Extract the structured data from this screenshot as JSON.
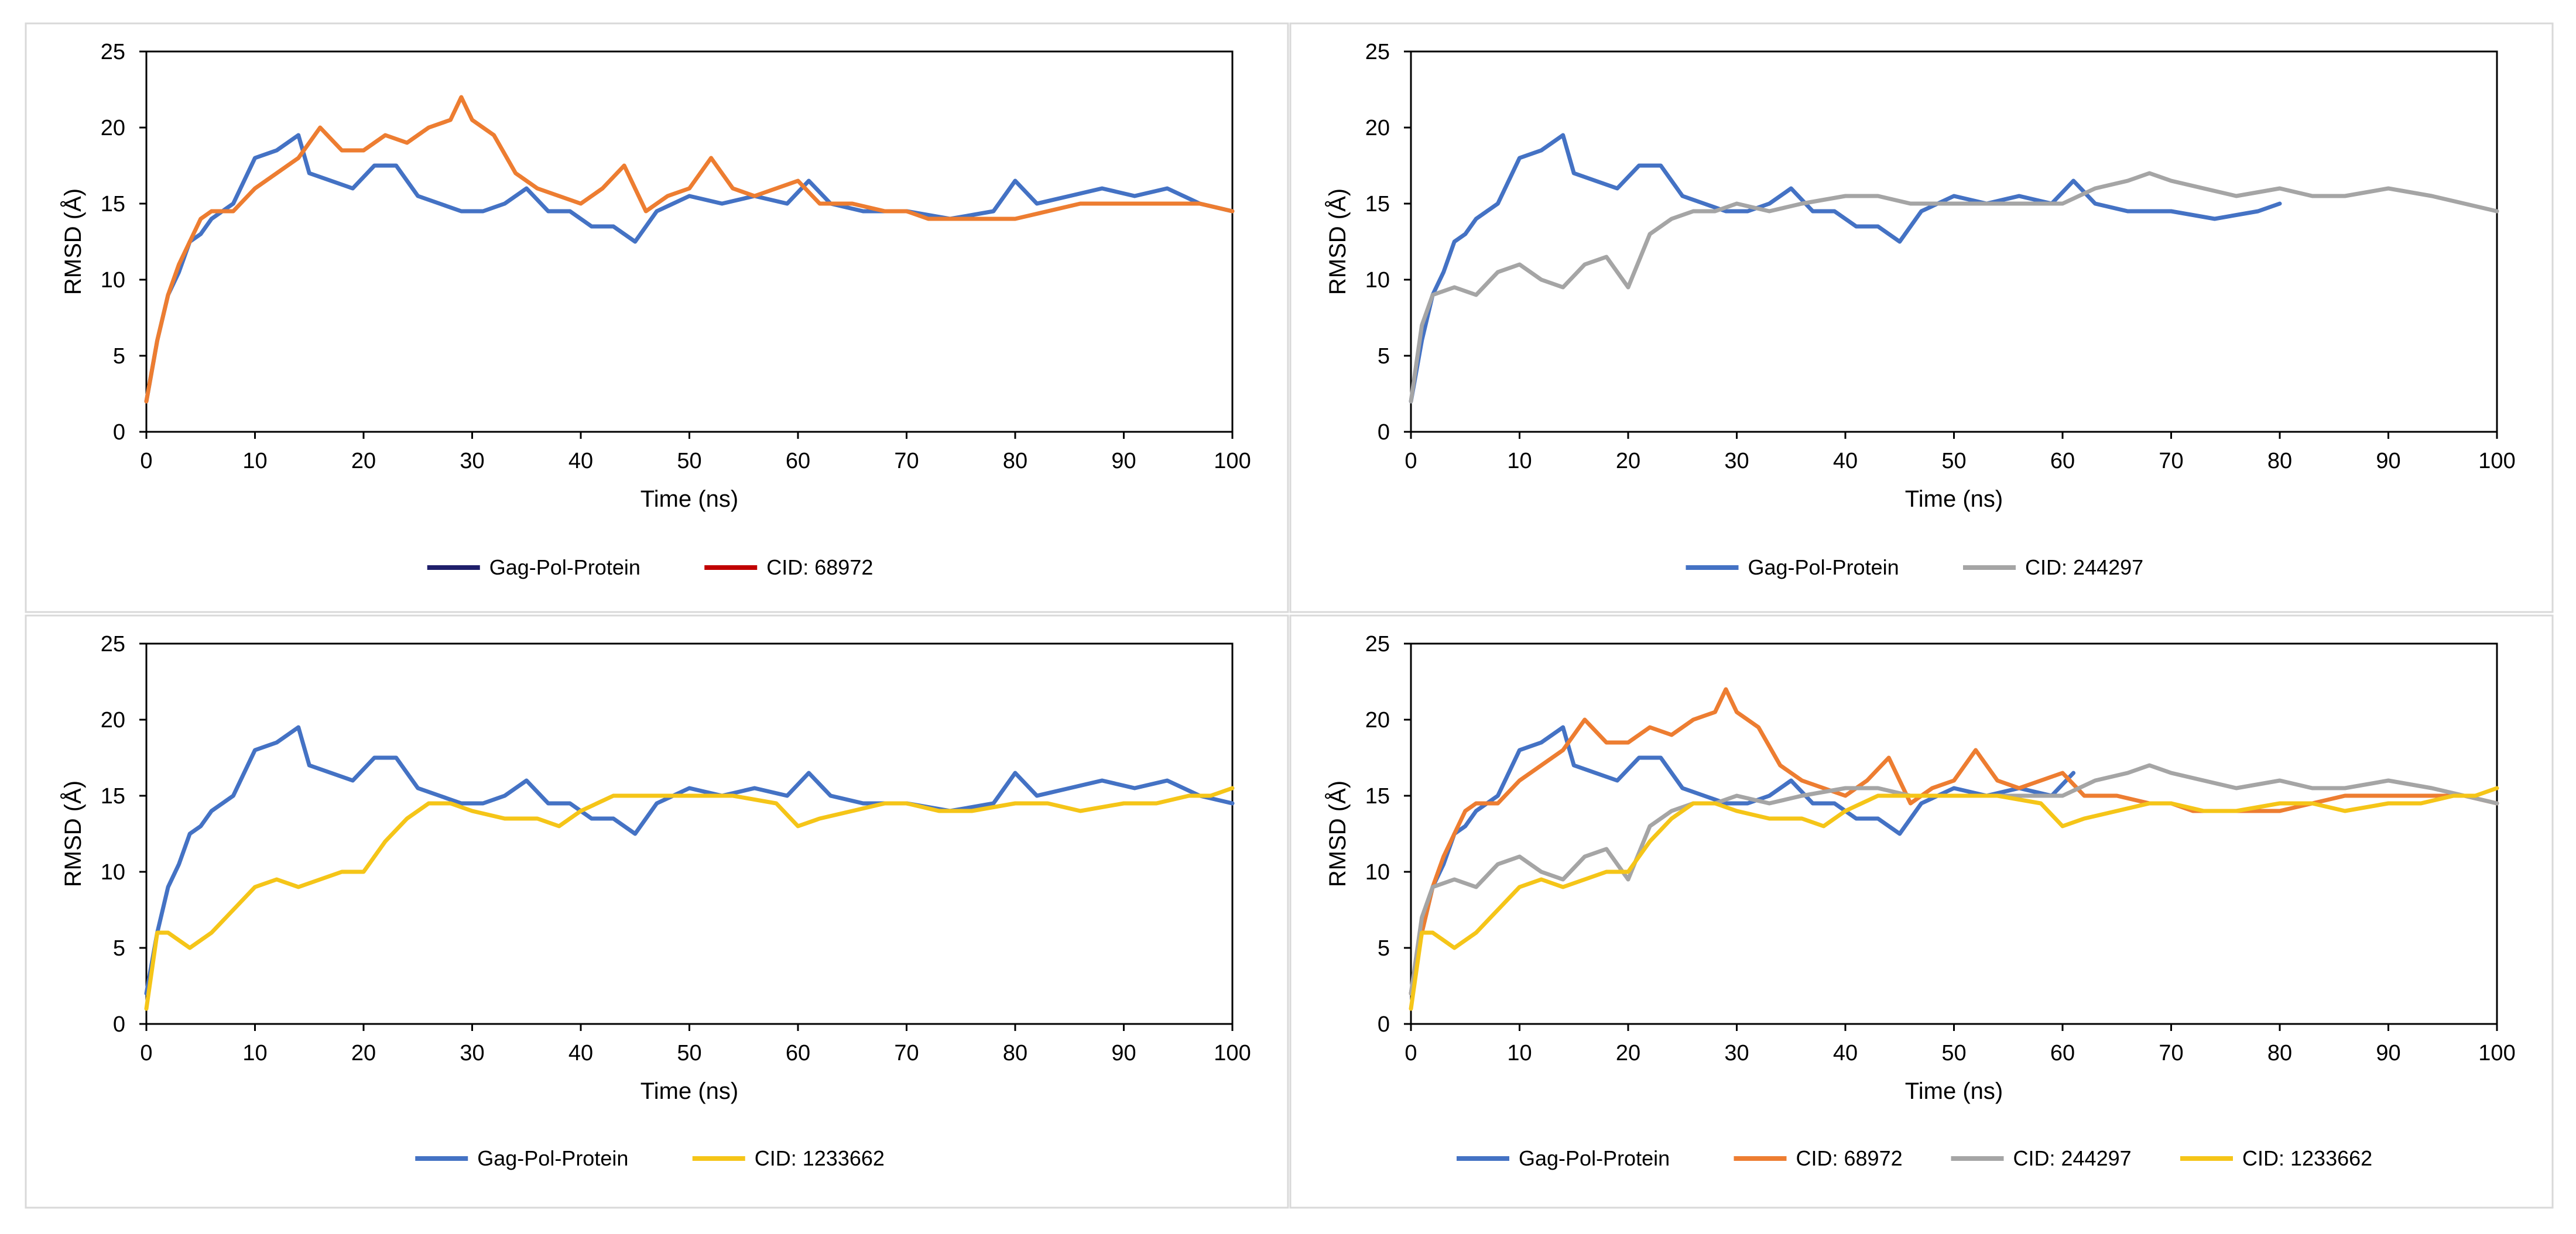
{
  "chart_data": [
    {
      "type": "line",
      "xlabel": "Time (ns)",
      "ylabel": "RMSD (Å)",
      "xlim": [
        0,
        100
      ],
      "ylim": [
        0,
        25
      ],
      "xticks": [
        "0",
        "10",
        "20",
        "30",
        "40",
        "50",
        "60",
        "70",
        "80",
        "90",
        "100"
      ],
      "yticks": [
        "0",
        "5",
        "10",
        "15",
        "20",
        "25"
      ],
      "legend": "bottom-center",
      "series": [
        {
          "name": "Gag-Pol-Protein",
          "color": "#4472c4",
          "legend_color": "#1f1f6b",
          "x": [
            0,
            1,
            2,
            3,
            4,
            5,
            6,
            8,
            10,
            12,
            14,
            15,
            17,
            19,
            21,
            23,
            25,
            27,
            29,
            31,
            33,
            35,
            37,
            39,
            41,
            43,
            45,
            47,
            50,
            53,
            56,
            59,
            61,
            63,
            66,
            70,
            74,
            78,
            80,
            82,
            85,
            88,
            91,
            94,
            97,
            100
          ],
          "y": [
            2,
            6,
            9,
            10.5,
            12.5,
            13,
            14,
            15,
            18,
            18.5,
            19.5,
            17,
            16.5,
            16,
            17.5,
            17.5,
            15.5,
            15,
            14.5,
            14.5,
            15,
            16,
            14.5,
            14.5,
            13.5,
            13.5,
            12.5,
            14.5,
            15.5,
            15,
            15.5,
            15,
            16.5,
            15,
            14.5,
            14.5,
            14,
            14.5,
            16.5,
            15,
            15.5,
            16,
            15.5,
            16,
            15,
            14.5
          ]
        },
        {
          "name": "CID: 68972",
          "color": "#ed7d31",
          "legend_color": "#c00000",
          "x": [
            0,
            1,
            2,
            3,
            4,
            5,
            6,
            8,
            10,
            12,
            14,
            16,
            18,
            20,
            22,
            24,
            26,
            28,
            29,
            30,
            32,
            34,
            36,
            38,
            40,
            42,
            44,
            46,
            48,
            50,
            52,
            54,
            56,
            58,
            60,
            62,
            65,
            68,
            70,
            72,
            75,
            78,
            80,
            83,
            86,
            90,
            94,
            97,
            100
          ],
          "y": [
            2,
            6,
            9,
            11,
            12.5,
            14,
            14.5,
            14.5,
            16,
            17,
            18,
            20,
            18.5,
            18.5,
            19.5,
            19,
            20,
            20.5,
            22,
            20.5,
            19.5,
            17,
            16,
            15.5,
            15,
            16,
            17.5,
            14.5,
            15.5,
            16,
            18,
            16,
            15.5,
            16,
            16.5,
            15,
            15,
            14.5,
            14.5,
            14,
            14,
            14,
            14,
            14.5,
            15,
            15,
            15,
            15,
            14.5
          ]
        }
      ]
    },
    {
      "type": "line",
      "xlabel": "Time (ns)",
      "ylabel": "RMSD (Å)",
      "xlim": [
        0,
        100
      ],
      "ylim": [
        0,
        25
      ],
      "xticks": [
        "0",
        "10",
        "20",
        "30",
        "40",
        "50",
        "60",
        "70",
        "80",
        "90",
        "100"
      ],
      "yticks": [
        "0",
        "5",
        "10",
        "15",
        "20",
        "25"
      ],
      "legend": "bottom-center",
      "series": [
        {
          "name": "Gag-Pol-Protein",
          "color": "#4472c4",
          "legend_color": "#4472c4",
          "x": [
            0,
            1,
            2,
            3,
            4,
            5,
            6,
            8,
            10,
            12,
            14,
            15,
            17,
            19,
            21,
            23,
            25,
            27,
            29,
            31,
            33,
            35,
            37,
            39,
            41,
            43,
            45,
            47,
            50,
            53,
            56,
            59,
            61,
            63,
            66,
            70,
            74,
            78,
            80
          ],
          "y": [
            2,
            6,
            9,
            10.5,
            12.5,
            13,
            14,
            15,
            18,
            18.5,
            19.5,
            17,
            16.5,
            16,
            17.5,
            17.5,
            15.5,
            15,
            14.5,
            14.5,
            15,
            16,
            14.5,
            14.5,
            13.5,
            13.5,
            12.5,
            14.5,
            15.5,
            15,
            15.5,
            15,
            16.5,
            15,
            14.5,
            14.5,
            14,
            14.5,
            15
          ]
        },
        {
          "name": "CID: 244297",
          "color": "#a5a5a5",
          "legend_color": "#a5a5a5",
          "x": [
            0,
            1,
            2,
            4,
            6,
            8,
            10,
            12,
            14,
            16,
            18,
            20,
            22,
            24,
            26,
            28,
            30,
            33,
            36,
            40,
            43,
            46,
            50,
            55,
            60,
            63,
            66,
            68,
            70,
            73,
            76,
            80,
            83,
            86,
            90,
            94,
            97,
            100
          ],
          "y": [
            2,
            7,
            9,
            9.5,
            9,
            10.5,
            11,
            10,
            9.5,
            11,
            11.5,
            9.5,
            13,
            14,
            14.5,
            14.5,
            15,
            14.5,
            15,
            15.5,
            15.5,
            15,
            15,
            15,
            15,
            16,
            16.5,
            17,
            16.5,
            16,
            15.5,
            16,
            15.5,
            15.5,
            16,
            15.5,
            15,
            14.5
          ]
        }
      ]
    },
    {
      "type": "line",
      "xlabel": "Time (ns)",
      "ylabel": "RMSD (Å)",
      "xlim": [
        0,
        100
      ],
      "ylim": [
        0,
        25
      ],
      "xticks": [
        "0",
        "10",
        "20",
        "30",
        "40",
        "50",
        "60",
        "70",
        "80",
        "90",
        "100"
      ],
      "yticks": [
        "0",
        "5",
        "10",
        "15",
        "20",
        "25"
      ],
      "legend": "bottom-center",
      "series": [
        {
          "name": "Gag-Pol-Protein",
          "color": "#4472c4",
          "legend_color": "#4472c4",
          "x": [
            0,
            1,
            2,
            3,
            4,
            5,
            6,
            8,
            10,
            12,
            14,
            15,
            17,
            19,
            21,
            23,
            25,
            27,
            29,
            31,
            33,
            35,
            37,
            39,
            41,
            43,
            45,
            47,
            50,
            53,
            56,
            59,
            61,
            63,
            66,
            70,
            74,
            78,
            80,
            82,
            85,
            88,
            91,
            94,
            97,
            100
          ],
          "y": [
            2,
            6,
            9,
            10.5,
            12.5,
            13,
            14,
            15,
            18,
            18.5,
            19.5,
            17,
            16.5,
            16,
            17.5,
            17.5,
            15.5,
            15,
            14.5,
            14.5,
            15,
            16,
            14.5,
            14.5,
            13.5,
            13.5,
            12.5,
            14.5,
            15.5,
            15,
            15.5,
            15,
            16.5,
            15,
            14.5,
            14.5,
            14,
            14.5,
            16.5,
            15,
            15.5,
            16,
            15.5,
            16,
            15,
            14.5
          ]
        },
        {
          "name": "CID: 1233662",
          "color": "#f5c518",
          "legend_color": "#f5c518",
          "x": [
            0,
            1,
            2,
            3,
            4,
            6,
            8,
            10,
            12,
            14,
            16,
            18,
            20,
            22,
            24,
            26,
            28,
            30,
            33,
            36,
            38,
            40,
            43,
            46,
            50,
            54,
            58,
            60,
            62,
            65,
            68,
            70,
            73,
            76,
            80,
            83,
            86,
            90,
            93,
            96,
            98,
            100
          ],
          "y": [
            1,
            6,
            6,
            5.5,
            5,
            6,
            7.5,
            9,
            9.5,
            9,
            9.5,
            10,
            10,
            12,
            13.5,
            14.5,
            14.5,
            14,
            13.5,
            13.5,
            13,
            14,
            15,
            15,
            15,
            15,
            14.5,
            13,
            13.5,
            14,
            14.5,
            14.5,
            14,
            14,
            14.5,
            14.5,
            14,
            14.5,
            14.5,
            15,
            15,
            15.5
          ]
        }
      ]
    },
    {
      "type": "line",
      "xlabel": "Time (ns)",
      "ylabel": "RMSD (Å)",
      "xlim": [
        0,
        100
      ],
      "ylim": [
        0,
        25
      ],
      "xticks": [
        "0",
        "10",
        "20",
        "30",
        "40",
        "50",
        "60",
        "70",
        "80",
        "90",
        "100"
      ],
      "yticks": [
        "0",
        "5",
        "10",
        "15",
        "20",
        "25"
      ],
      "legend": "bottom-center",
      "series": [
        {
          "name": "Gag-Pol-Protein",
          "color": "#4472c4",
          "legend_color": "#4472c4",
          "x": [
            0,
            1,
            2,
            3,
            4,
            5,
            6,
            8,
            10,
            12,
            14,
            15,
            17,
            19,
            21,
            23,
            25,
            27,
            29,
            31,
            33,
            35,
            37,
            39,
            41,
            43,
            45,
            47,
            50,
            53,
            56,
            59,
            61
          ],
          "y": [
            2,
            6,
            9,
            10.5,
            12.5,
            13,
            14,
            15,
            18,
            18.5,
            19.5,
            17,
            16.5,
            16,
            17.5,
            17.5,
            15.5,
            15,
            14.5,
            14.5,
            15,
            16,
            14.5,
            14.5,
            13.5,
            13.5,
            12.5,
            14.5,
            15.5,
            15,
            15.5,
            15,
            16.5
          ]
        },
        {
          "name": "CID: 68972",
          "color": "#ed7d31",
          "legend_color": "#ed7d31",
          "x": [
            0,
            1,
            2,
            3,
            4,
            5,
            6,
            8,
            10,
            12,
            14,
            16,
            18,
            20,
            22,
            24,
            26,
            28,
            29,
            30,
            32,
            34,
            36,
            38,
            40,
            42,
            44,
            46,
            48,
            50,
            52,
            54,
            56,
            58,
            60,
            62,
            65,
            68,
            70,
            72,
            75,
            78,
            80,
            83,
            86,
            90,
            94,
            97,
            100
          ],
          "y": [
            2,
            6,
            9,
            11,
            12.5,
            14,
            14.5,
            14.5,
            16,
            17,
            18,
            20,
            18.5,
            18.5,
            19.5,
            19,
            20,
            20.5,
            22,
            20.5,
            19.5,
            17,
            16,
            15.5,
            15,
            16,
            17.5,
            14.5,
            15.5,
            16,
            18,
            16,
            15.5,
            16,
            16.5,
            15,
            15,
            14.5,
            14.5,
            14,
            14,
            14,
            14,
            14.5,
            15,
            15,
            15,
            15,
            14.5
          ]
        },
        {
          "name": "CID: 244297",
          "color": "#a5a5a5",
          "legend_color": "#a5a5a5",
          "x": [
            0,
            1,
            2,
            4,
            6,
            8,
            10,
            12,
            14,
            16,
            18,
            20,
            22,
            24,
            26,
            28,
            30,
            33,
            36,
            40,
            43,
            46,
            50,
            55,
            60,
            63,
            66,
            68,
            70,
            73,
            76,
            80,
            83,
            86,
            90,
            94,
            97,
            100
          ],
          "y": [
            2,
            7,
            9,
            9.5,
            9,
            10.5,
            11,
            10,
            9.5,
            11,
            11.5,
            9.5,
            13,
            14,
            14.5,
            14.5,
            15,
            14.5,
            15,
            15.5,
            15.5,
            15,
            15,
            15,
            15,
            16,
            16.5,
            17,
            16.5,
            16,
            15.5,
            16,
            15.5,
            15.5,
            16,
            15.5,
            15,
            14.5
          ]
        },
        {
          "name": "CID: 1233662",
          "color": "#f5c518",
          "legend_color": "#f5c518",
          "x": [
            0,
            1,
            2,
            3,
            4,
            6,
            8,
            10,
            12,
            14,
            16,
            18,
            20,
            22,
            24,
            26,
            28,
            30,
            33,
            36,
            38,
            40,
            43,
            46,
            50,
            54,
            58,
            60,
            62,
            65,
            68,
            70,
            73,
            76,
            80,
            83,
            86,
            90,
            93,
            96,
            98,
            100
          ],
          "y": [
            1,
            6,
            6,
            5.5,
            5,
            6,
            7.5,
            9,
            9.5,
            9,
            9.5,
            10,
            10,
            12,
            13.5,
            14.5,
            14.5,
            14,
            13.5,
            13.5,
            13,
            14,
            15,
            15,
            15,
            15,
            14.5,
            13,
            13.5,
            14,
            14.5,
            14.5,
            14,
            14,
            14.5,
            14.5,
            14,
            14.5,
            14.5,
            15,
            15,
            15.5
          ]
        }
      ]
    }
  ]
}
